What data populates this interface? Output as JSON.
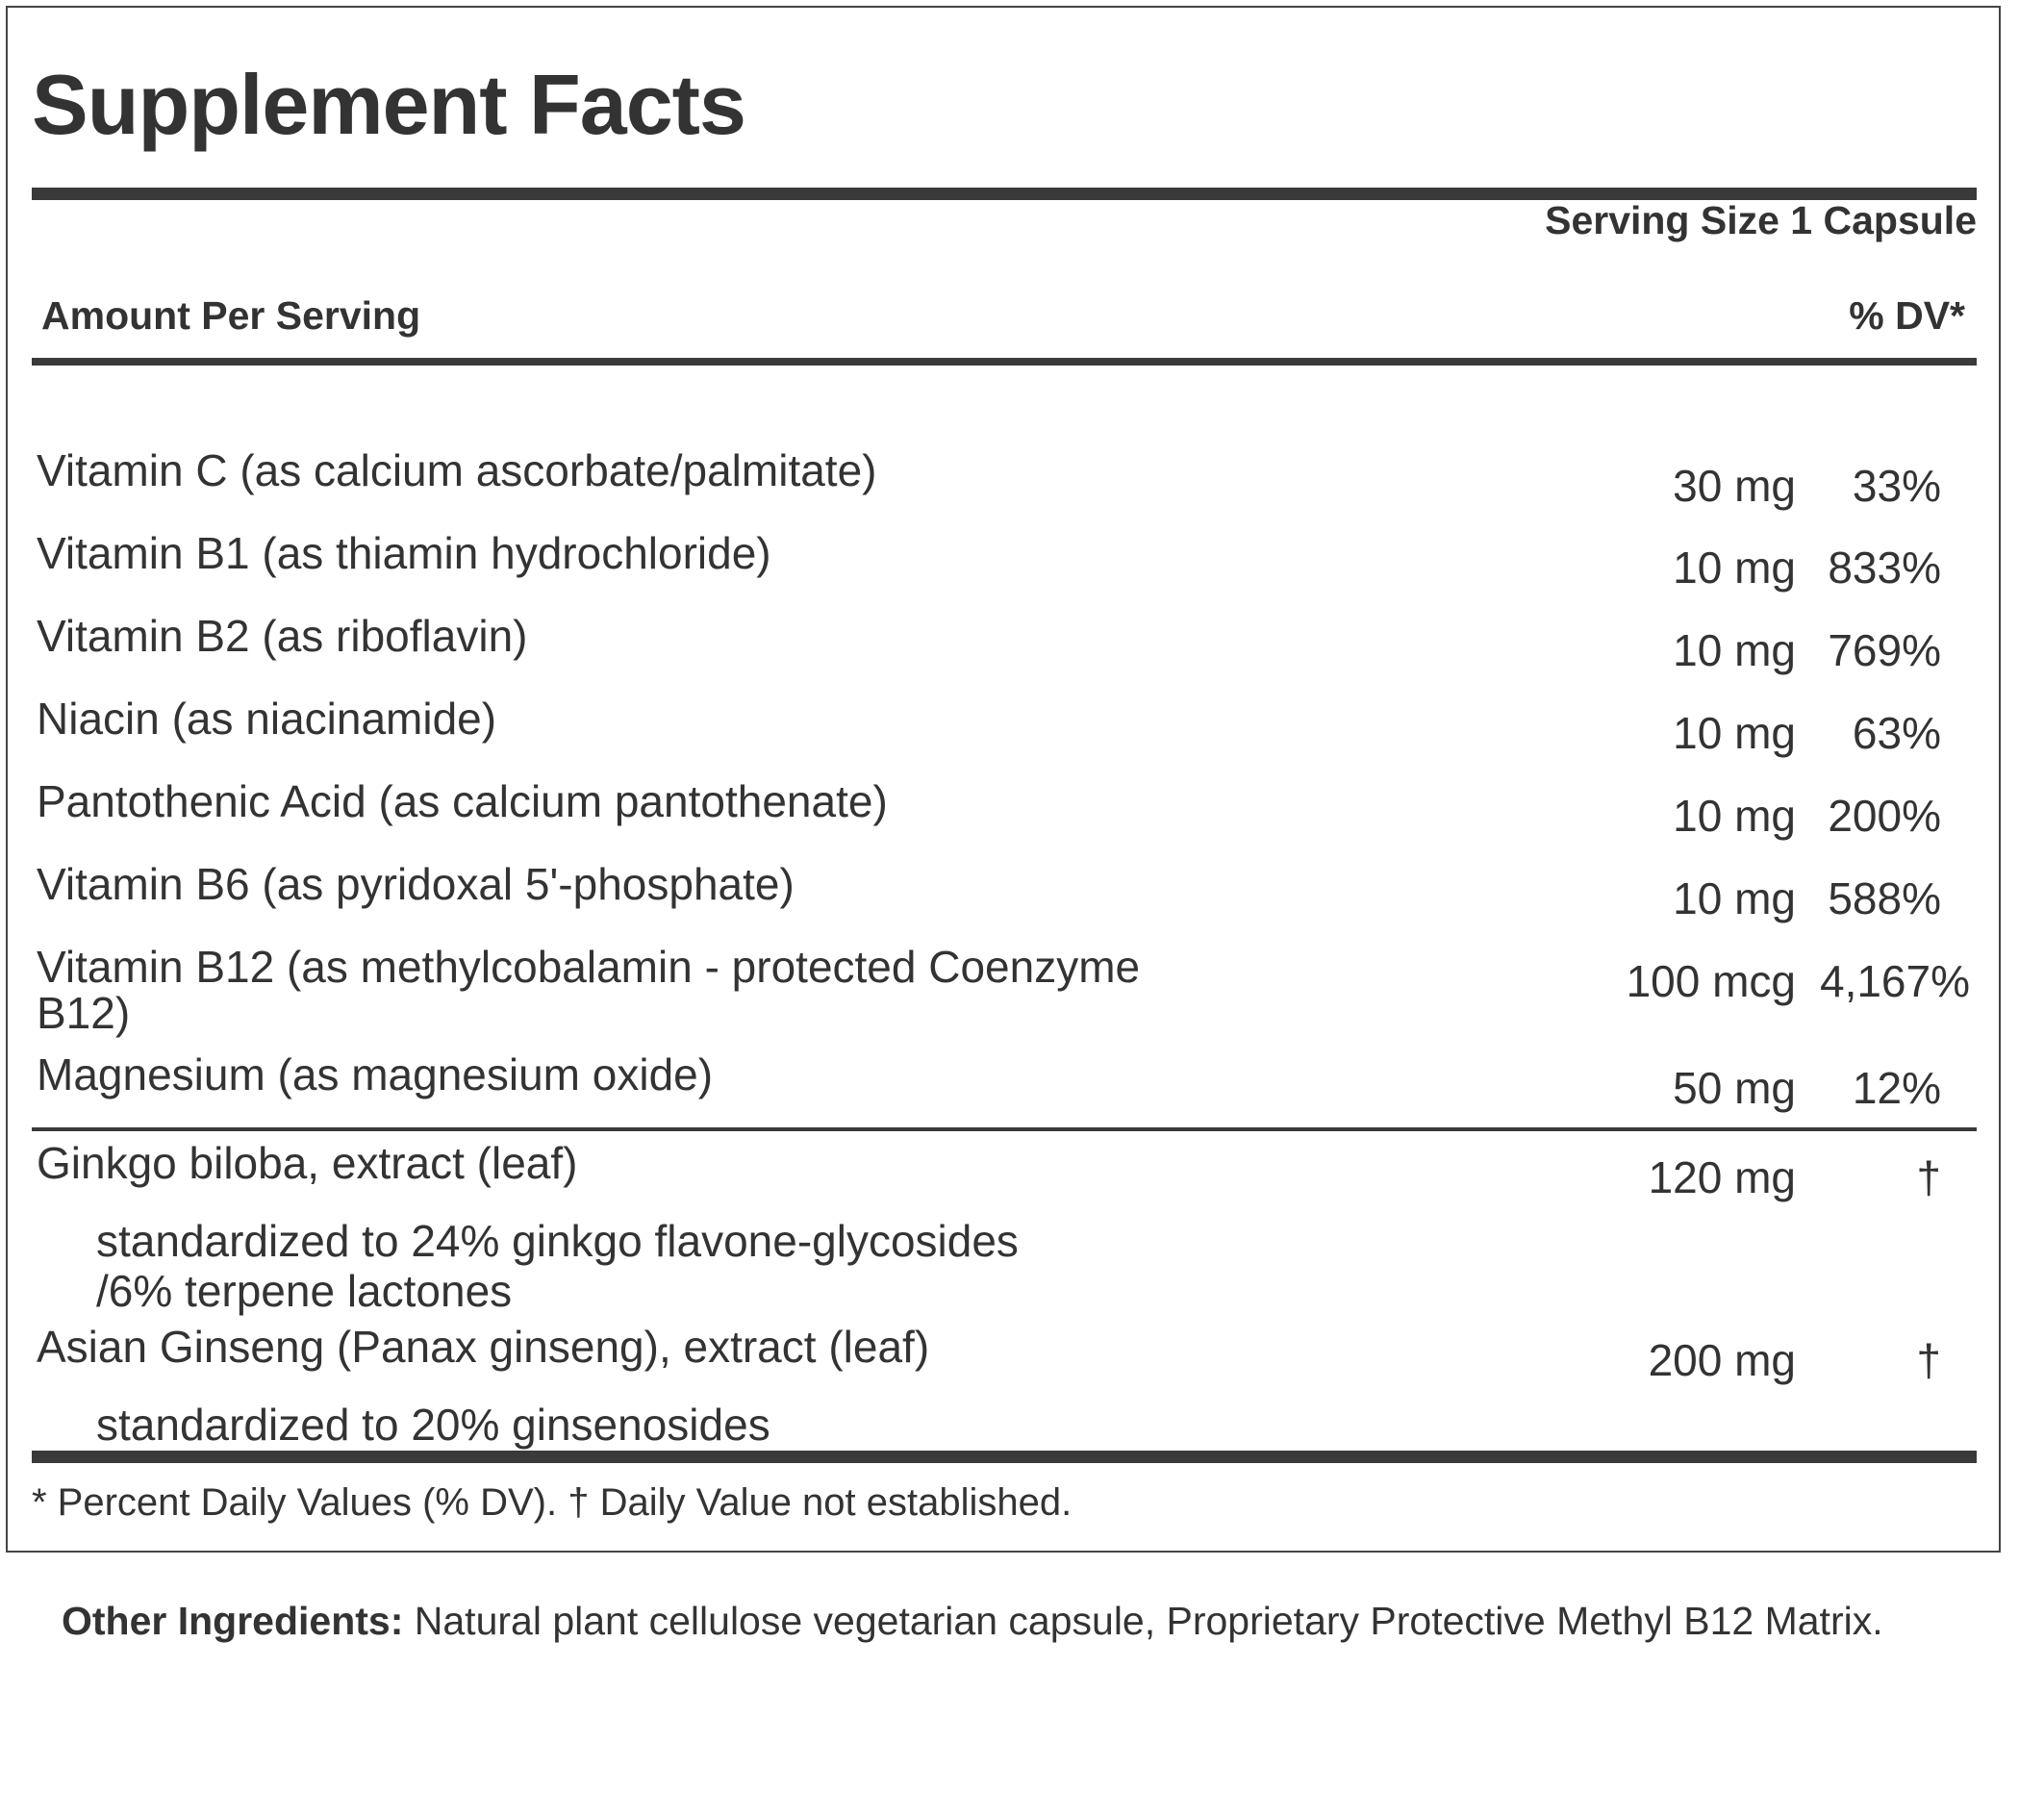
{
  "title": "Supplement Facts",
  "serving_size": "Serving Size 1 Capsule",
  "amount_per_serving": "Amount Per Serving",
  "dv_header": "% DV*",
  "nutrients": [
    {
      "name": "Vitamin C (as calcium ascorbate/palmitate)",
      "amount": "30 mg",
      "dv": "33%"
    },
    {
      "name": "Vitamin B1 (as thiamin hydrochloride)",
      "amount": "10 mg",
      "dv": "833%"
    },
    {
      "name": "Vitamin B2 (as riboflavin)",
      "amount": "10 mg",
      "dv": "769%"
    },
    {
      "name": "Niacin (as niacinamide)",
      "amount": "10 mg",
      "dv": "63%"
    },
    {
      "name": "Pantothenic Acid (as calcium pantothenate)",
      "amount": "10 mg",
      "dv": "200%"
    },
    {
      "name": "Vitamin B6 (as pyridoxal 5'-phosphate)",
      "amount": "10 mg",
      "dv": "588%"
    },
    {
      "name": "Vitamin B12 (as methylcobalamin - protected Coenzyme",
      "name2": "B12)",
      "amount": "100 mcg",
      "dv": "4,167%"
    },
    {
      "name": "Magnesium (as magnesium oxide)",
      "amount": "50 mg",
      "dv": "12%"
    }
  ],
  "botanicals": [
    {
      "name": "Ginkgo biloba, extract (leaf)",
      "sub1": "standardized to 24% ginkgo flavone-glycosides",
      "sub2": "/6% terpene lactones",
      "amount": "120 mg",
      "dv": "†"
    },
    {
      "name": "Asian Ginseng (Panax ginseng), extract (leaf)",
      "sub1": "standardized to 20% ginsenosides",
      "amount": "200 mg",
      "dv": "†"
    }
  ],
  "footnote": "* Percent Daily Values (% DV). † Daily Value not established.",
  "other_ingredients": {
    "label": "Other Ingredients:",
    "text": " Natural plant cellulose vegetarian capsule, Proprietary Protective Methyl B12 Matrix."
  }
}
